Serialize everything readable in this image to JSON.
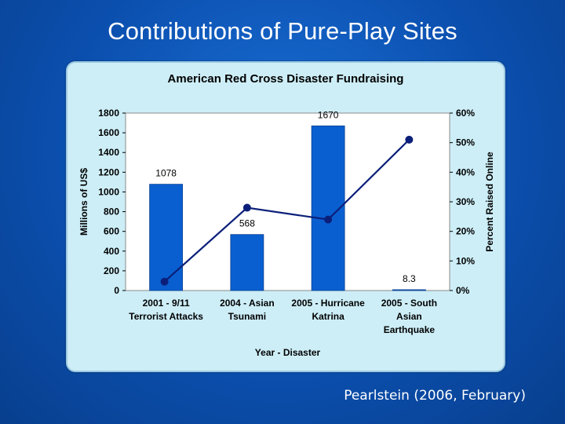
{
  "slide": {
    "title": "Contributions of Pure-Play Sites",
    "citation": "Pearlstein (2006, February)"
  },
  "colors": {
    "bar": "#0a5fd0",
    "line": "#0b1f7a",
    "panel": "#cdeef7",
    "plot": "#ffffff"
  },
  "chart_data": {
    "type": "bar",
    "title": "American Red Cross Disaster Fundraising",
    "xlabel": "Year - Disaster",
    "ylabel": "Millions of US$",
    "y2label": "Percent Raised Online",
    "categories": [
      [
        "2001 - 9/11",
        "Terrorist Attacks"
      ],
      [
        "2004 - Asian",
        "Tsunami"
      ],
      [
        "2005 - Hurricane",
        "Katrina"
      ],
      [
        "2005 - South",
        "Asian",
        "Earthquake"
      ]
    ],
    "ylim": [
      0,
      1800
    ],
    "yticks": [
      0,
      200,
      400,
      600,
      800,
      1000,
      1200,
      1400,
      1600,
      1800
    ],
    "y2lim": [
      0,
      60
    ],
    "y2ticks": [
      "0%",
      "10%",
      "20%",
      "30%",
      "40%",
      "50%",
      "60%"
    ],
    "series": [
      {
        "values": [
          1078,
          568,
          1670,
          8.3
        ],
        "labels": [
          "1078",
          "568",
          "1670",
          "8.3"
        ]
      },
      {
        "values": [
          3,
          28,
          24,
          51
        ]
      }
    ],
    "grid": false,
    "legend": "none"
  }
}
